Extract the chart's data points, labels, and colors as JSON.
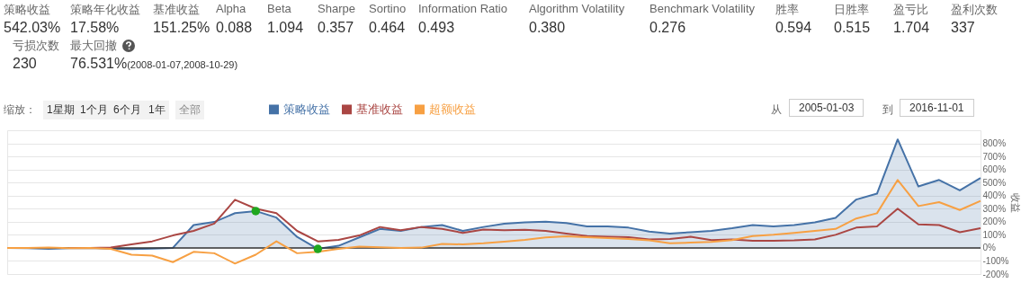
{
  "chart_data": [
    {
      "type": "other",
      "annotations": [
        "策略收益",
        "策略年化收益",
        "基准收益",
        "Alpha",
        "Beta",
        "Sharpe",
        "Sortino",
        "Information Ratio",
        "Algorithm Volatility",
        "Benchmark Volatility",
        "胜率",
        "日胜率",
        "盈亏比",
        "盈利次数",
        "亏损次数",
        "最大回撤",
        "542.03%",
        "17.58%",
        "151.25%",
        "0.088",
        "1.094",
        "0.357",
        "0.464",
        "0.493",
        "0.380",
        "0.276",
        "0.594",
        "0.515",
        "1.704",
        "337",
        "230",
        "76.531%",
        "(2008-01-07,2008-10-29)"
      ]
    },
    {
      "type": "line",
      "ylabel": "收益",
      "legend": "top",
      "grid": "y",
      "annotations": [
        "缩放：",
        "1星期",
        "1个月",
        "6个月",
        "1年",
        "全部",
        "从",
        "2005-01-03",
        "到",
        "2016-11-01"
      ],
      "categories": [
        null,
        null,
        null,
        null,
        null,
        null,
        null,
        null,
        null,
        null,
        null,
        null,
        null,
        null,
        null,
        null,
        null,
        null,
        null,
        null,
        null,
        null,
        null,
        null,
        null,
        null,
        null,
        null,
        null,
        null,
        null,
        null,
        null,
        null,
        null,
        null,
        null,
        null,
        null,
        null,
        null,
        null,
        null,
        null,
        null,
        null,
        null,
        null
      ],
      "ylim": [
        -200,
        900
      ],
      "yticks": [
        {
          "value": -200,
          "label": "-200%"
        },
        {
          "value": -100,
          "label": "-100%"
        },
        {
          "value": 0,
          "label": "0%"
        },
        {
          "value": 100,
          "label": "100%"
        },
        {
          "value": 200,
          "label": "200%"
        },
        {
          "value": 300,
          "label": "300%"
        },
        {
          "value": 400,
          "label": "400%"
        },
        {
          "value": 500,
          "label": "500%"
        },
        {
          "value": 600,
          "label": "600%"
        },
        {
          "value": 700,
          "label": "700%"
        },
        {
          "value": 800,
          "label": "800%"
        },
        {
          "value": 900,
          "label": null
        }
      ],
      "ref_lines": [
        {
          "axis": "y",
          "value": 0,
          "color": "#333333"
        }
      ],
      "series": [
        {
          "name": "策略收益",
          "type": "area",
          "color": "#4572a7",
          "values": [
            0,
            -3,
            -8,
            -3,
            0,
            -5,
            -10,
            -5,
            0,
            175,
            198,
            266,
            282,
            232,
            84,
            -8,
            16,
            80,
            145,
            130,
            160,
            175,
            130,
            160,
            185,
            195,
            200,
            190,
            165,
            165,
            155,
            125,
            110,
            120,
            130,
            150,
            175,
            165,
            175,
            195,
            230,
            370,
            415,
            830,
            470,
            520,
            440,
            535
          ]
        },
        {
          "name": "基准收益",
          "color": "#aa4643",
          "values": [
            null,
            null,
            null,
            0,
            0,
            3,
            27,
            50,
            95,
            130,
            186,
            368,
            300,
            266,
            130,
            50,
            61,
            95,
            160,
            135,
            160,
            145,
            115,
            140,
            135,
            138,
            130,
            110,
            90,
            85,
            82,
            65,
            68,
            85,
            60,
            65,
            55,
            55,
            58,
            65,
            100,
            155,
            165,
            300,
            180,
            175,
            120,
            150
          ]
        },
        {
          "name": "超额收益",
          "color": "#f7a043",
          "values": [
            0,
            0,
            2,
            -2,
            0,
            -7,
            -52,
            -59,
            -109,
            -30,
            -41,
            -120,
            -52,
            50,
            -41,
            -30,
            -7,
            10,
            5,
            0,
            2,
            30,
            27,
            35,
            48,
            62,
            80,
            88,
            82,
            75,
            68,
            58,
            35,
            40,
            45,
            60,
            90,
            100,
            115,
            130,
            145,
            225,
            265,
            520,
            320,
            350,
            290,
            360
          ]
        },
        {
          "type": "scatter",
          "color": "#1fa71f",
          "values": [
            null,
            null,
            null,
            null,
            null,
            null,
            null,
            null,
            null,
            null,
            null,
            null,
            282,
            null,
            null,
            -8,
            null,
            null,
            null,
            null,
            null,
            null,
            null,
            null,
            null,
            null,
            null,
            null,
            null,
            null,
            null,
            null,
            null,
            null,
            null,
            null,
            null,
            null,
            null,
            null,
            null,
            null,
            null,
            null,
            null,
            null,
            null,
            null
          ]
        }
      ]
    }
  ]
}
